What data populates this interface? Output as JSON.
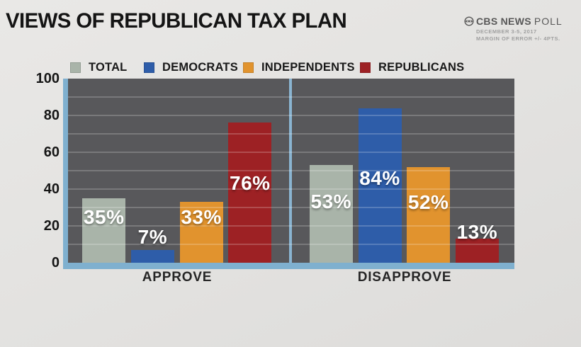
{
  "title": "VIEWS OF REPUBLICAN TAX PLAN",
  "source": {
    "logo": "cbs-eye-icon",
    "brand_bold": "CBS NEWS",
    "brand_light": "POLL",
    "line1": "DECEMBER 3-5, 2017",
    "line2": "MARGIN OF ERROR +/- 4PTS."
  },
  "legend": [
    {
      "label": "TOTAL",
      "color": "#a9b4a9"
    },
    {
      "label": "DEMOCRATS",
      "color": "#2e5da9"
    },
    {
      "label": "INDEPENDENTS",
      "color": "#e1932e"
    },
    {
      "label": "REPUBLICANS",
      "color": "#9d2124"
    }
  ],
  "chart_data": {
    "type": "bar",
    "title": "VIEWS OF REPUBLICAN TAX PLAN",
    "categories": [
      "APPROVE",
      "DISAPPROVE"
    ],
    "series": [
      {
        "name": "TOTAL",
        "color": "#a9b4a9",
        "values": [
          35,
          53
        ]
      },
      {
        "name": "DEMOCRATS",
        "color": "#2e5da9",
        "values": [
          7,
          84
        ]
      },
      {
        "name": "INDEPENDENTS",
        "color": "#e1932e",
        "values": [
          33,
          52
        ]
      },
      {
        "name": "REPUBLICANS",
        "color": "#9d2124",
        "values": [
          76,
          13
        ]
      }
    ],
    "value_suffix": "%",
    "xlabel": "",
    "ylabel": "",
    "ylim": [
      0,
      100
    ],
    "yticks": [
      0,
      20,
      40,
      60,
      80,
      100
    ],
    "gridlines_every": 10,
    "grid": true,
    "legend_position": "top",
    "plot_bg": "#58585b",
    "frame_color": "#7fb0cf"
  }
}
